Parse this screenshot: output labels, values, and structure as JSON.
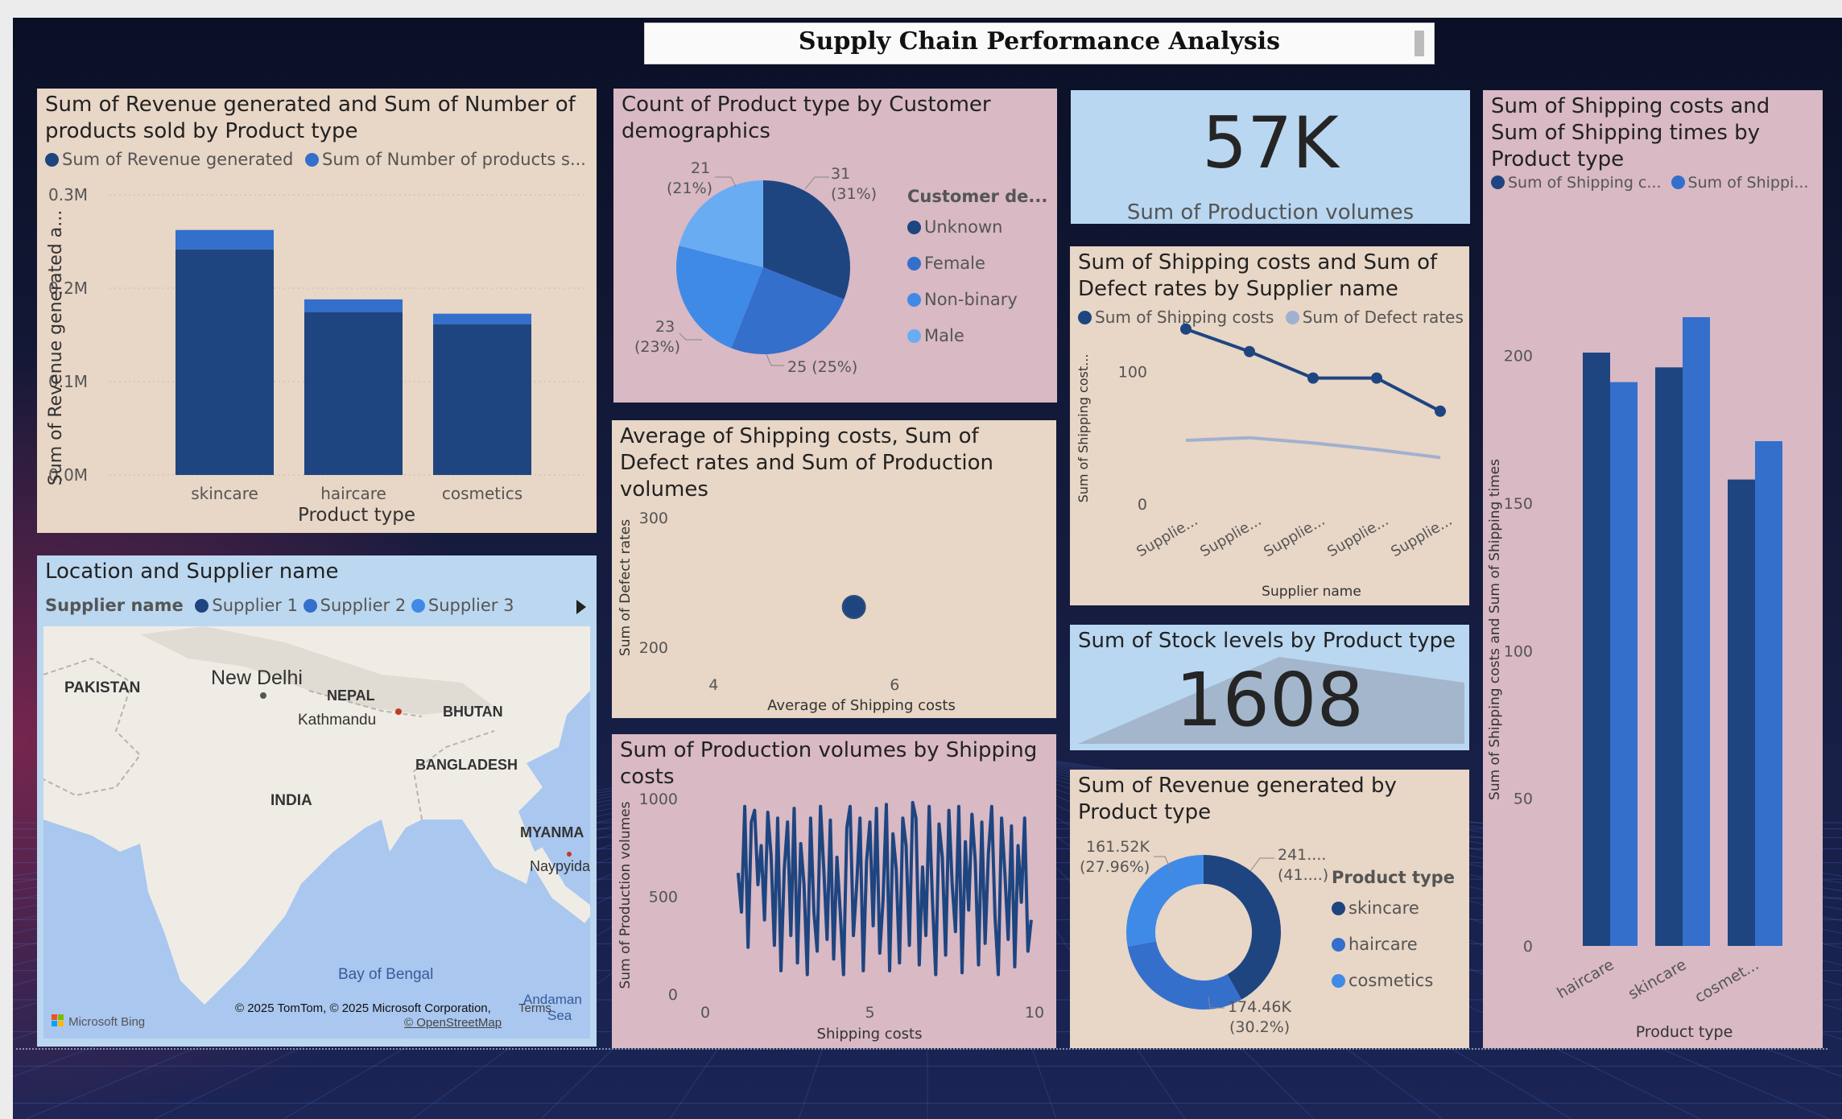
{
  "dashboard": {
    "title": "Supply Chain Performance Analysis"
  },
  "colors": {
    "dark": "#1e4580",
    "mid": "#346fcc",
    "light": "#3f8ae6",
    "lighter": "#6aacf2",
    "grey": "#9fb1cf"
  },
  "p1": {
    "title": "Sum of Revenue generated and Sum of Number of products sold by Product type",
    "legend": [
      "Sum of Revenue generated",
      "Sum of Number of products s..."
    ],
    "ylabel": "Sum of Revenue generated a...",
    "xlabel": "Product type",
    "ticks": [
      "0.0M",
      "0.1M",
      "0.2M",
      "0.3M"
    ]
  },
  "p2": {
    "title": "Count of Product type by Customer demographics",
    "legend_title": "Customer de...",
    "legend": [
      "Unknown",
      "Female",
      "Non-binary",
      "Male"
    ],
    "labels": {
      "unknown": [
        "31",
        "(31%)"
      ],
      "female": [
        "25 (25%)"
      ],
      "nonbinary": [
        "23",
        "(23%)"
      ],
      "male": [
        "21",
        "(21%)"
      ]
    }
  },
  "p3": {
    "value": "57K",
    "label": "Sum of Production volumes"
  },
  "p4": {
    "title": "Sum of Shipping costs and Sum of Shipping times by Product type",
    "legend": [
      "Sum of Shipping c...",
      "Sum of Shippi..."
    ],
    "ylabel": "Sum of Shipping costs and Sum of Shipping times",
    "xlabel": "Product type",
    "ticks": [
      "0",
      "50",
      "100",
      "150",
      "200"
    ],
    "categories": [
      "haircare",
      "skincare",
      "cosmet..."
    ]
  },
  "p5": {
    "title": "Average of Shipping costs, Sum of Defect rates and Sum of Production volumes",
    "ylabel": "Sum of Defect rates",
    "xlabel": "Average of Shipping costs",
    "yticks": [
      "200",
      "300"
    ],
    "xticks": [
      "4",
      "6"
    ]
  },
  "p6": {
    "title": "Sum of Shipping costs and Sum of Defect rates by Supplier name",
    "legend": [
      "Sum of Shipping costs",
      "Sum of Defect rates"
    ],
    "ylabel": "Sum of Shipping cost...",
    "xlabel": "Supplier name",
    "yticks": [
      "0",
      "100"
    ],
    "categories": [
      "Supplie...",
      "Supplie...",
      "Supplie...",
      "Supplie...",
      "Supplie..."
    ]
  },
  "p7": {
    "title": "Location and Supplier name",
    "legend_title": "Supplier name",
    "legend": [
      "Supplier 1",
      "Supplier 2",
      "Supplier 3"
    ],
    "places": {
      "pakistan": "PAKISTAN",
      "delhi": "New Delhi",
      "nepal": "NEPAL",
      "kathmandu": "Kathmandu",
      "bhutan": "BHUTAN",
      "bangladesh": "BANGLADESH",
      "india": "INDIA",
      "myanmar": "MYANMA",
      "naypyidaw": "Naypyida",
      "bay": "Bay of Bengal",
      "andaman": "Andaman",
      "sea": "Sea"
    },
    "attribution": "© 2025 TomTom, © 2025 Microsoft Corporation,",
    "terms": "Terms",
    "osm": "© OpenStreetMap",
    "bing": "Microsoft Bing"
  },
  "p8": {
    "title": "Sum of Production volumes by Shipping costs",
    "ylabel": "Sum of Production volumes",
    "xlabel": "Shipping costs",
    "yticks": [
      "0",
      "500",
      "1000"
    ],
    "xticks": [
      "0",
      "5",
      "10"
    ]
  },
  "p9": {
    "title": "Sum of Stock levels by Product type",
    "value": "1608"
  },
  "p10": {
    "title": "Sum of Revenue generated by Product type",
    "legend_title": "Product type",
    "legend": [
      "skincare",
      "haircare",
      "cosmetics"
    ],
    "labels": {
      "skincare": [
        "241....",
        "(41....)"
      ],
      "haircare": [
        "174.46K",
        "(30.2%)"
      ],
      "cosmetics": [
        "161.52K",
        "(27.96%)"
      ]
    }
  },
  "chart_data": [
    {
      "type": "bar",
      "title": "Sum of Revenue generated and Sum of Number of products sold by Product type",
      "categories": [
        "skincare",
        "haircare",
        "cosmetics"
      ],
      "series": [
        {
          "name": "Sum of Revenue generated",
          "values": [
            241628,
            174455,
            161521
          ]
        },
        {
          "name": "Sum of Number of products s...",
          "values": [
            20731,
            13611,
            11167
          ]
        }
      ],
      "xlabel": "Product type",
      "ylabel": "Sum of Revenue generated a...",
      "ylim": [
        0,
        300000
      ],
      "stacked": true
    },
    {
      "type": "pie",
      "title": "Count of Product type by Customer demographics",
      "categories": [
        "Unknown",
        "Female",
        "Non-binary",
        "Male"
      ],
      "values": [
        31,
        25,
        23,
        21
      ]
    },
    {
      "type": "bar",
      "title": "Sum of Shipping costs and Sum of Shipping times by Product type",
      "categories": [
        "haircare",
        "skincare",
        "cosmet..."
      ],
      "series": [
        {
          "name": "Sum of Shipping c...",
          "values": [
            201,
            196,
            158
          ]
        },
        {
          "name": "Sum of Shippi...",
          "values": [
            191,
            213,
            171
          ]
        }
      ],
      "xlabel": "Product type",
      "ylabel": "Sum of Shipping costs and Sum of Shipping times",
      "ylim": [
        0,
        225
      ]
    },
    {
      "type": "scatter",
      "title": "Average of Shipping costs, Sum of Defect rates and Sum of Production volumes",
      "x": [
        5.55
      ],
      "y": [
        231
      ],
      "xlabel": "Average of Shipping costs",
      "ylabel": "Sum of Defect rates",
      "xlim": [
        3.5,
        7.5
      ],
      "ylim": [
        170,
        310
      ]
    },
    {
      "type": "line",
      "title": "Sum of Shipping costs and Sum of Defect rates by Supplier name",
      "categories": [
        "Supplie...",
        "Supplie...",
        "Supplie...",
        "Supplie...",
        "Supplie..."
      ],
      "series": [
        {
          "name": "Sum of Shipping costs",
          "values": [
            132,
            115,
            95,
            95,
            70
          ]
        },
        {
          "name": "Sum of Defect rates",
          "values": [
            48,
            50,
            46,
            41,
            35
          ]
        }
      ],
      "xlabel": "Supplier name",
      "ylabel": "Sum of Shipping cost...",
      "ylim": [
        0,
        130
      ]
    },
    {
      "type": "line",
      "title": "Sum of Production volumes by Shipping costs",
      "x": [
        1.0,
        1.1,
        1.2,
        1.3,
        1.4,
        1.5,
        1.6,
        1.7,
        1.8,
        1.9,
        2.0,
        2.1,
        2.2,
        2.3,
        2.4,
        2.5,
        2.6,
        2.7,
        2.8,
        2.9,
        3.0,
        3.1,
        3.2,
        3.3,
        3.4,
        3.5,
        3.6,
        3.7,
        3.8,
        3.9,
        4.0,
        4.1,
        4.2,
        4.3,
        4.4,
        4.5,
        4.6,
        4.7,
        4.8,
        4.9,
        5.0,
        5.1,
        5.2,
        5.3,
        5.4,
        5.5,
        5.6,
        5.7,
        5.8,
        5.9,
        6.0,
        6.1,
        6.2,
        6.3,
        6.4,
        6.5,
        6.6,
        6.7,
        6.8,
        6.9,
        7.0,
        7.1,
        7.2,
        7.3,
        7.4,
        7.5,
        7.6,
        7.7,
        7.8,
        7.9,
        8.0,
        8.1,
        8.2,
        8.3,
        8.4,
        8.5,
        8.6,
        8.7,
        8.8,
        8.9,
        9.0,
        9.1,
        9.2,
        9.3,
        9.4,
        9.5,
        9.6,
        9.7,
        9.8,
        9.9
      ],
      "values": [
        620,
        420,
        960,
        240,
        880,
        940,
        560,
        760,
        380,
        930,
        710,
        250,
        900,
        120,
        640,
        880,
        300,
        950,
        160,
        770,
        560,
        100,
        900,
        420,
        220,
        960,
        640,
        280,
        890,
        180,
        700,
        420,
        100,
        850,
        960,
        300,
        560,
        900,
        120,
        680,
        880,
        350,
        950,
        210,
        480,
        970,
        120,
        820,
        640,
        160,
        900,
        760,
        250,
        980,
        900,
        150,
        650,
        300,
        960,
        480,
        100,
        870,
        700,
        200,
        940,
        560,
        320,
        960,
        110,
        780,
        430,
        920,
        680,
        150,
        880,
        260,
        720,
        960,
        400,
        100,
        900,
        620,
        280,
        860,
        140,
        760,
        470,
        900,
        220,
        380
      ],
      "xlabel": "Shipping costs",
      "ylabel": "Sum of Production volumes",
      "xlim": [
        0,
        10
      ],
      "ylim": [
        0,
        1000
      ]
    },
    {
      "type": "pie",
      "title": "Sum of Revenue generated by Product type",
      "categories": [
        "skincare",
        "haircare",
        "cosmetics"
      ],
      "values": [
        241628,
        174455,
        161521
      ],
      "donut": true
    }
  ]
}
